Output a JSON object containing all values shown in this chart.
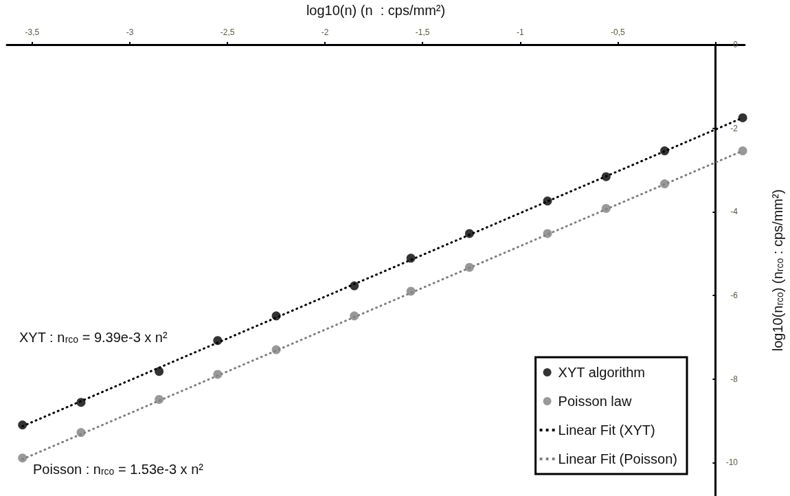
{
  "chart_data": {
    "type": "scatter",
    "xlabel": "log10(n) (n  : cps/mm²)",
    "ylabel": "log10(n$_{rco}$) (n$_{rco}$ : cps/mm²)",
    "annotations": [
      "XYT : n$_{rco}$ = 9.39e-3 x n²",
      "Poisson : n$_{rco}$ = 1.53e-3 x n²"
    ],
    "x": [
      -3.55,
      -3.25,
      -2.85,
      -2.55,
      -2.25,
      -1.85,
      -1.56,
      -1.26,
      -0.86,
      -0.56,
      -0.26,
      0.14
    ],
    "series": [
      {
        "name": "XYT algorithm",
        "color": "#000000",
        "values": [
          -9.1,
          -8.56,
          -7.82,
          -7.08,
          -6.49,
          -5.77,
          -5.11,
          -4.52,
          -3.74,
          -3.16,
          -2.54,
          -1.75
        ]
      },
      {
        "name": "Poisson law",
        "color": "#808080",
        "values": [
          -9.89,
          -9.28,
          -8.49,
          -7.89,
          -7.3,
          -6.49,
          -5.9,
          -5.33,
          -4.52,
          -3.92,
          -3.33,
          -2.54
        ]
      },
      {
        "name": "Linear Fit (XYT)",
        "type": "line",
        "color": "#000000",
        "values": [
          -9.13,
          null,
          null,
          null,
          null,
          null,
          null,
          null,
          null,
          null,
          null,
          -1.75
        ],
        "line_style": "dotted",
        "marker": "none"
      },
      {
        "name": "Linear Fit (Poisson)",
        "type": "line",
        "color": "#808080",
        "values": [
          -9.92,
          null,
          null,
          null,
          null,
          null,
          null,
          null,
          null,
          null,
          null,
          -2.54
        ],
        "line_style": "dotted",
        "marker": "none"
      }
    ],
    "marker": "circle",
    "legend": "bottom right",
    "grid": false,
    "xlim": [
      -3.63,
      0.15
    ],
    "xticks": [
      {
        "value": -3.5,
        "label": "-3,5"
      },
      -3,
      {
        "value": -2.5,
        "label": "-2,5"
      },
      -2,
      {
        "value": -1.5,
        "label": "-1,5"
      },
      -1,
      {
        "value": -0.5,
        "label": "-0,5"
      },
      {
        "value": 0,
        "label": null
      }
    ],
    "ylim": [
      -10.8,
      0
    ],
    "yticks": [
      0,
      -2,
      -4,
      -6,
      -8,
      -10
    ]
  }
}
